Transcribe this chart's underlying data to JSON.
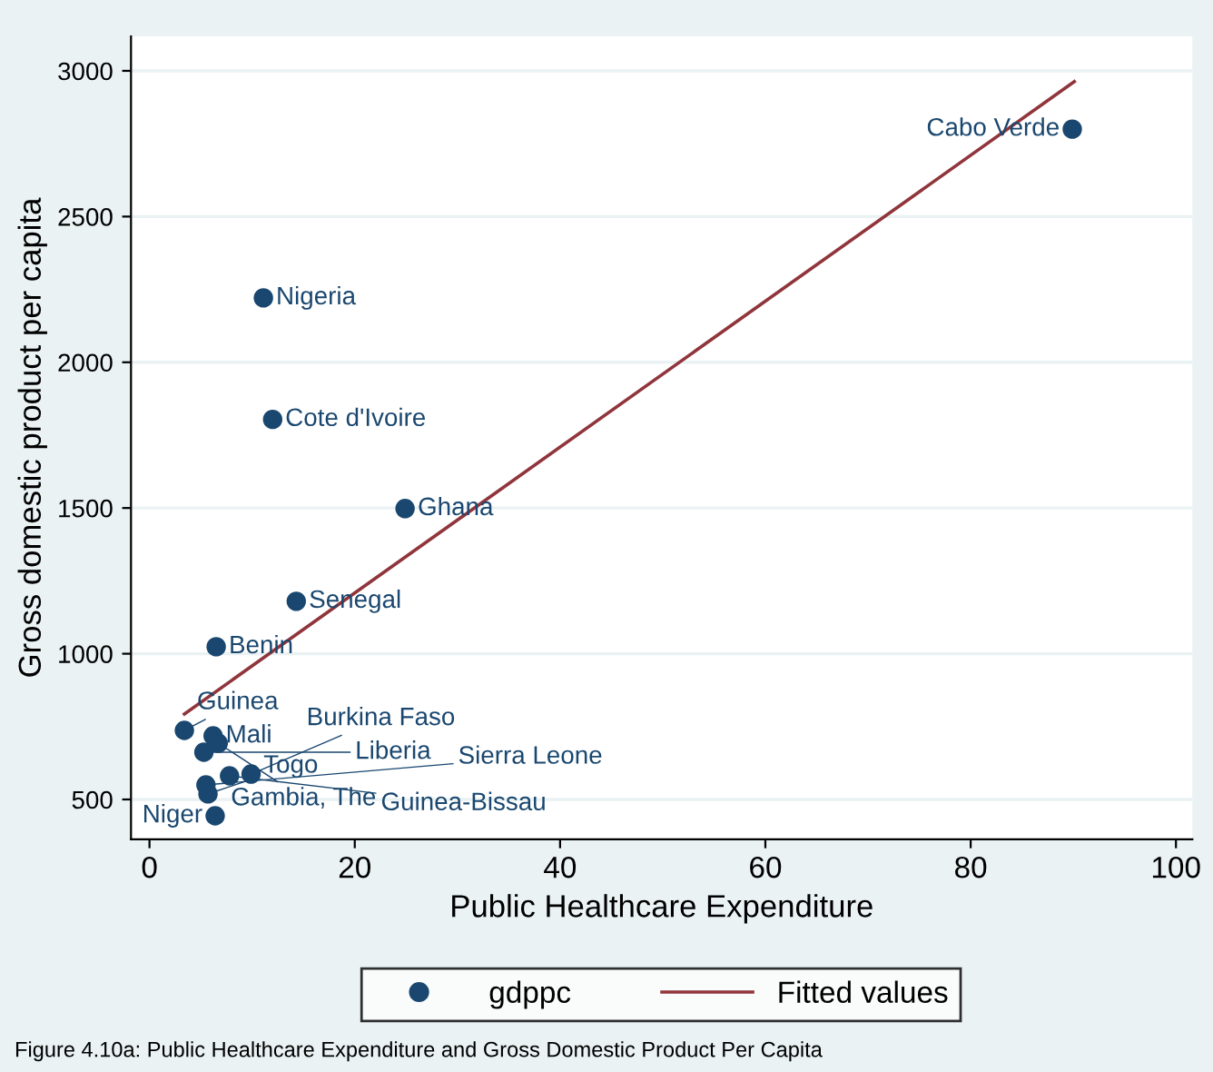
{
  "chart_data": {
    "type": "scatter",
    "xlabel": "Public Healthcare Expenditure",
    "ylabel": "Gross domestic product per capita",
    "xlim": [
      -1.8,
      101.6
    ],
    "ylim": [
      363,
      3118
    ],
    "xticks": [
      0,
      20,
      40,
      60,
      80,
      100
    ],
    "yticks": [
      500,
      1000,
      1500,
      2000,
      2500,
      3000
    ],
    "grid": "y",
    "legend": "bottom",
    "series": [
      {
        "name": "gdppc",
        "marker": "circle",
        "color": "#1a476f",
        "x": [
          89.9,
          11.1,
          12.0,
          24.9,
          14.3,
          6.5,
          3.4,
          6.2,
          6.7,
          5.3,
          7.8,
          9.9,
          5.5,
          5.7,
          6.4
        ],
        "values": [
          2800,
          2221,
          1804,
          1498,
          1180,
          1024,
          737,
          718,
          693,
          662,
          581,
          587,
          550,
          519,
          444
        ]
      },
      {
        "name": "Fitted values",
        "type": "line",
        "color": "#90353b",
        "x": [
          3.4,
          90.1
        ],
        "values": [
          793,
          2963
        ]
      }
    ],
    "annotations": [
      {
        "text": "Cabo Verde",
        "x": 89.9,
        "y": 2800
      },
      {
        "text": "Nigeria",
        "x": 11.1,
        "y": 2221
      },
      {
        "text": "Cote d'Ivoire",
        "x": 12.0,
        "y": 1804
      },
      {
        "text": "Ghana",
        "x": 24.9,
        "y": 1498
      },
      {
        "text": "Senegal",
        "x": 14.3,
        "y": 1180
      },
      {
        "text": "Benin",
        "x": 6.5,
        "y": 1024
      },
      {
        "text": "Guinea",
        "x": 3.4,
        "y": 737
      },
      {
        "text": "Mali",
        "x": 6.2,
        "y": 718
      },
      {
        "text": "Gambia, The",
        "x": 6.7,
        "y": 693
      },
      {
        "text": "Liberia",
        "x": 5.3,
        "y": 662
      },
      {
        "text": "Guinea-Bissau",
        "x": 7.8,
        "y": 581
      },
      {
        "text": "Burkina Faso",
        "x": 9.9,
        "y": 587
      },
      {
        "text": "Sierra Leone",
        "x": 5.5,
        "y": 550
      },
      {
        "text": "Togo",
        "x": 5.7,
        "y": 519
      },
      {
        "text": "Niger",
        "x": 6.4,
        "y": 444
      },
      "Figure 4.10a: Public Healthcare Expenditure and Gross Domestic Product Per Capita"
    ]
  }
}
